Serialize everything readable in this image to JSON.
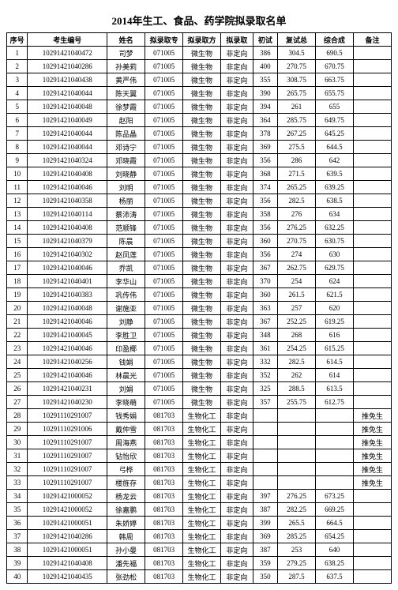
{
  "title": "2014年生工、食品、药学院拟录取名单",
  "columns": [
    "序号",
    "考生编号",
    "姓名",
    "拟录取专",
    "拟录取方",
    "拟录取",
    "初试",
    "复试总",
    "综合成",
    "备注"
  ],
  "rows": [
    [
      "1",
      "10291421040472",
      "司梦",
      "071005",
      "微生物",
      "非定向",
      "386",
      "304.5",
      "690.5",
      ""
    ],
    [
      "2",
      "10291421040286",
      "孙美莉",
      "071005",
      "微生物",
      "非定向",
      "400",
      "270.75",
      "670.75",
      ""
    ],
    [
      "3",
      "10291421040438",
      "黄严伟",
      "071005",
      "微生物",
      "非定向",
      "355",
      "308.75",
      "663.75",
      ""
    ],
    [
      "4",
      "10291421040044",
      "陈天翼",
      "071005",
      "微生物",
      "非定向",
      "390",
      "265.75",
      "655.75",
      ""
    ],
    [
      "5",
      "10291421040048",
      "徐梦霞",
      "071005",
      "微生物",
      "非定向",
      "394",
      "261",
      "655",
      ""
    ],
    [
      "6",
      "10291421040049",
      "赵阳",
      "071005",
      "微生物",
      "非定向",
      "364",
      "285.75",
      "649.75",
      ""
    ],
    [
      "7",
      "10291421040044",
      "陈品晶",
      "071005",
      "微生物",
      "非定向",
      "378",
      "267.25",
      "645.25",
      ""
    ],
    [
      "8",
      "10291421040044",
      "邓诗宁",
      "071005",
      "微生物",
      "非定向",
      "369",
      "275.5",
      "644.5",
      ""
    ],
    [
      "9",
      "10291421040324",
      "邓晓霞",
      "071005",
      "微生物",
      "非定向",
      "356",
      "286",
      "642",
      ""
    ],
    [
      "10",
      "10291421040408",
      "刘晓静",
      "071005",
      "微生物",
      "非定向",
      "368",
      "271.5",
      "639.5",
      ""
    ],
    [
      "11",
      "10291421040046",
      "刘明",
      "071005",
      "微生物",
      "非定向",
      "374",
      "265.25",
      "639.25",
      ""
    ],
    [
      "12",
      "10291421040358",
      "杨丽",
      "071005",
      "微生物",
      "非定向",
      "356",
      "282.5",
      "638.5",
      ""
    ],
    [
      "13",
      "10291421040114",
      "蔡沛涛",
      "071005",
      "微生物",
      "非定向",
      "358",
      "276",
      "634",
      ""
    ],
    [
      "14",
      "10291421040408",
      "范顺锋",
      "071005",
      "微生物",
      "非定向",
      "356",
      "276.25",
      "632.25",
      ""
    ],
    [
      "15",
      "10291421040379",
      "陈晨",
      "071005",
      "微生物",
      "非定向",
      "360",
      "270.75",
      "630.75",
      ""
    ],
    [
      "16",
      "10291421040302",
      "赵凤莲",
      "071005",
      "微生物",
      "非定向",
      "356",
      "274",
      "630",
      ""
    ],
    [
      "17",
      "10291421040046",
      "乔凯",
      "071005",
      "微生物",
      "非定向",
      "367",
      "262.75",
      "629.75",
      ""
    ],
    [
      "18",
      "10291421040401",
      "李华山",
      "071005",
      "微生物",
      "非定向",
      "370",
      "254",
      "624",
      ""
    ],
    [
      "19",
      "10291421040383",
      "巩传伟",
      "071005",
      "微生物",
      "非定向",
      "360",
      "261.5",
      "621.5",
      ""
    ],
    [
      "20",
      "10291421040048",
      "谢施亚",
      "071005",
      "微生物",
      "非定向",
      "363",
      "257",
      "620",
      ""
    ],
    [
      "21",
      "10291421040046",
      "刘静",
      "071005",
      "微生物",
      "非定向",
      "367",
      "252.25",
      "619.25",
      ""
    ],
    [
      "22",
      "10291421040045",
      "李胜卫",
      "071005",
      "微生物",
      "非定向",
      "348",
      "268",
      "616",
      ""
    ],
    [
      "23",
      "10291421040046",
      "印盈椰",
      "071005",
      "微生物",
      "非定向",
      "361",
      "254.25",
      "615.25",
      ""
    ],
    [
      "24",
      "10291421040256",
      "钱娟",
      "071005",
      "微生物",
      "非定向",
      "332",
      "282.5",
      "614.5",
      ""
    ],
    [
      "25",
      "10291421040046",
      "林晨光",
      "071005",
      "微生物",
      "非定向",
      "352",
      "262",
      "614",
      ""
    ],
    [
      "26",
      "10291421040231",
      "刘娟",
      "071005",
      "微生物",
      "非定向",
      "325",
      "288.5",
      "613.5",
      ""
    ],
    [
      "27",
      "10291421040230",
      "李晓萌",
      "071005",
      "微生物",
      "非定向",
      "357",
      "255.75",
      "612.75",
      ""
    ],
    [
      "28",
      "10291110291007",
      "钱秀娟",
      "081703",
      "生物化工",
      "非定向",
      "",
      "",
      "",
      "推免生"
    ],
    [
      "29",
      "10291110291006",
      "戴仲雪",
      "081703",
      "生物化工",
      "非定向",
      "",
      "",
      "",
      "推免生"
    ],
    [
      "30",
      "10291110291007",
      "周海燕",
      "081703",
      "生物化工",
      "非定向",
      "",
      "",
      "",
      "推免生"
    ],
    [
      "31",
      "10291110291007",
      "钻怡欣",
      "081703",
      "生物化工",
      "非定向",
      "",
      "",
      "",
      "推免生"
    ],
    [
      "32",
      "10291110291007",
      "弓桦",
      "081703",
      "生物化工",
      "非定向",
      "",
      "",
      "",
      "推免生"
    ],
    [
      "33",
      "10291110291007",
      "楼旌存",
      "081703",
      "生物化工",
      "非定向",
      "",
      "",
      "",
      "推免生"
    ],
    [
      "34",
      "10291421000052",
      "杨龙云",
      "081703",
      "生物化工",
      "非定向",
      "397",
      "276.25",
      "673.25",
      ""
    ],
    [
      "35",
      "10291421000052",
      "徐嘉鹏",
      "081703",
      "生物化工",
      "非定向",
      "387",
      "282.25",
      "669.25",
      ""
    ],
    [
      "36",
      "10291421000051",
      "朱娇婷",
      "081703",
      "生物化工",
      "非定向",
      "399",
      "265.5",
      "664.5",
      ""
    ],
    [
      "37",
      "10291421040286",
      "韩周",
      "081703",
      "生物化工",
      "非定向",
      "369",
      "285.25",
      "654.25",
      ""
    ],
    [
      "38",
      "10291421000051",
      "孙小曼",
      "081703",
      "生物化工",
      "非定向",
      "387",
      "253",
      "640",
      ""
    ],
    [
      "39",
      "10291421040408",
      "潘先福",
      "081703",
      "生物化工",
      "非定向",
      "359",
      "279.25",
      "638.25",
      ""
    ],
    [
      "40",
      "10291421040435",
      "张劲松",
      "081703",
      "生物化工",
      "非定向",
      "350",
      "287.5",
      "637.5",
      ""
    ]
  ]
}
